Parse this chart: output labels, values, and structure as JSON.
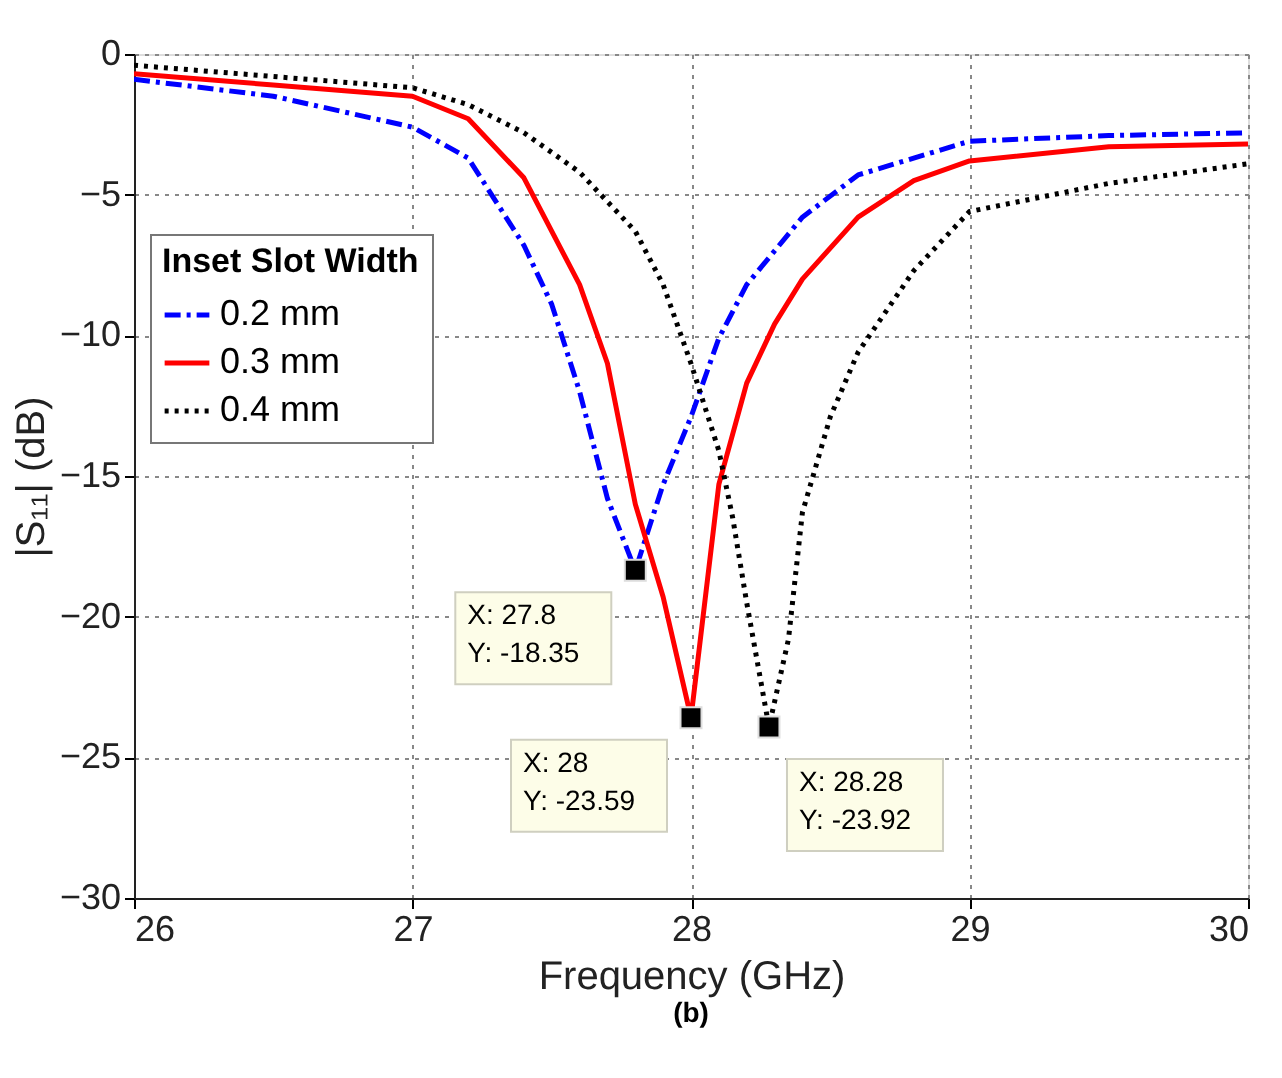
{
  "chart_data": {
    "type": "line",
    "xlabel": "Frequency (GHz)",
    "ylabel": "|S₁₁| (dB)",
    "legend_title": "Inset Slot Width",
    "legend": "top left",
    "grid": true,
    "xlim": [
      26,
      30
    ],
    "ylim": [
      -30,
      0
    ],
    "xticks": [
      26,
      27,
      28,
      29,
      30
    ],
    "yticks": [
      -30,
      -25,
      -20,
      -15,
      -10,
      -5,
      0
    ],
    "series": [
      {
        "name": "0.2 mm",
        "color": "#0000ff",
        "line_style": "dashed",
        "x": [
          26,
          26.5,
          27,
          27.2,
          27.4,
          27.5,
          27.6,
          27.7,
          27.8,
          27.9,
          28,
          28.1,
          28.2,
          28.4,
          28.6,
          29,
          29.5,
          30
        ],
        "values": [
          -0.9,
          -1.5,
          -2.6,
          -3.7,
          -6.8,
          -8.9,
          -12,
          -15.8,
          -18.35,
          -15.3,
          -12.9,
          -10.1,
          -8.2,
          -5.8,
          -4.3,
          -3.1,
          -2.9,
          -2.8
        ]
      },
      {
        "name": "0.3 mm",
        "color": "#ff0000",
        "line_style": "solid",
        "x": [
          26,
          26.5,
          27,
          27.2,
          27.4,
          27.6,
          27.7,
          27.8,
          27.9,
          28,
          28.1,
          28.2,
          28.3,
          28.4,
          28.6,
          28.8,
          29,
          29.5,
          30
        ],
        "values": [
          -0.7,
          -1.1,
          -1.5,
          -2.3,
          -4.4,
          -8.2,
          -11,
          -16,
          -19.3,
          -23.59,
          -15.3,
          -11.7,
          -9.6,
          -8,
          -5.8,
          -4.5,
          -3.8,
          -3.3,
          -3.2
        ]
      },
      {
        "name": "0.4 mm",
        "color": "#000000",
        "line_style": "dotted",
        "x": [
          26,
          26.5,
          27,
          27.2,
          27.4,
          27.6,
          27.8,
          27.9,
          28,
          28.1,
          28.15,
          28.2,
          28.28,
          28.35,
          28.4,
          28.5,
          28.6,
          28.8,
          29,
          29.5,
          30
        ],
        "values": [
          -0.4,
          -0.8,
          -1.2,
          -1.8,
          -2.8,
          -4.2,
          -6.3,
          -8.2,
          -11,
          -14.1,
          -16.5,
          -19.5,
          -23.92,
          -20.8,
          -16.3,
          -12.9,
          -10.6,
          -7.7,
          -5.6,
          -4.6,
          -3.9
        ]
      }
    ],
    "annotations": [
      {
        "text": "X: 27.8\nY: -18.35",
        "x": 27.8,
        "y": -18.35
      },
      {
        "text": "X: 28\nY: -23.59",
        "x": 28,
        "y": -23.59
      },
      {
        "text": "X: 28.28\nY: -23.92",
        "x": 28.28,
        "y": -23.92
      },
      "(b)"
    ]
  }
}
